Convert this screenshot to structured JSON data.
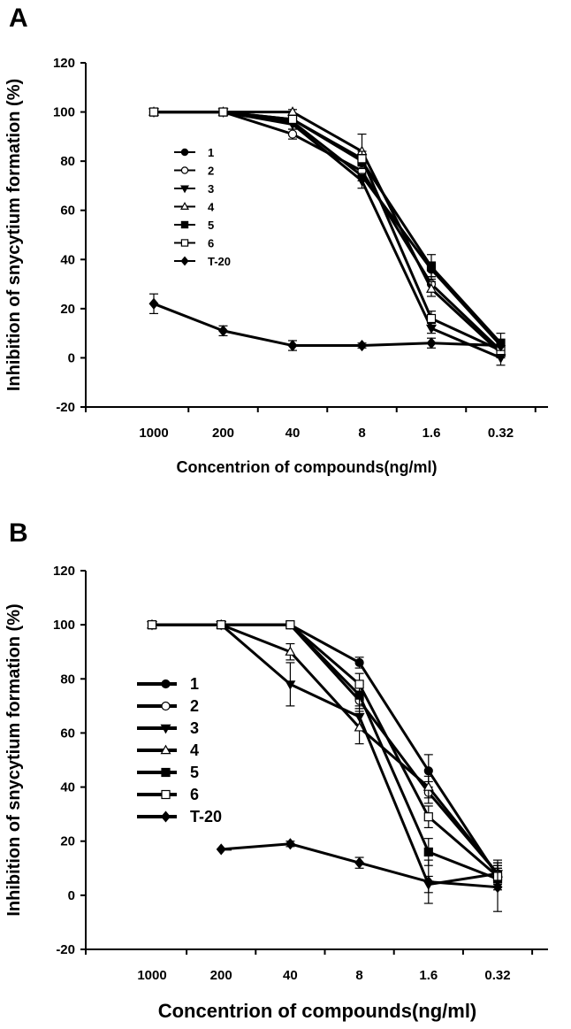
{
  "chart_data": [
    {
      "panel": "A",
      "type": "line",
      "title": "",
      "xlabel": "Concentrion of compounds(ng/ml)",
      "ylabel": "Inhibition of snycytium formation (%)",
      "ylim": [
        -20,
        120
      ],
      "yticks": [
        -20,
        0,
        20,
        40,
        60,
        80,
        100,
        120
      ],
      "categories": [
        "1000",
        "200",
        "40",
        "8",
        "1.6",
        "0.32"
      ],
      "grid": false,
      "legend_position": "center-left",
      "series": [
        {
          "name": "1",
          "marker": "circle-filled",
          "values": [
            100,
            100,
            96,
            74,
            36,
            5
          ],
          "errors": [
            0,
            0,
            1,
            2,
            3,
            2
          ]
        },
        {
          "name": "2",
          "marker": "circle-open",
          "values": [
            100,
            100,
            91,
            76,
            30,
            3
          ],
          "errors": [
            0,
            0,
            2,
            3,
            3,
            2
          ]
        },
        {
          "name": "3",
          "marker": "triangle-down-filled",
          "values": [
            100,
            100,
            95,
            72,
            12,
            0
          ],
          "errors": [
            0,
            0,
            2,
            3,
            2,
            3
          ]
        },
        {
          "name": "4",
          "marker": "triangle-up-open",
          "values": [
            100,
            100,
            100,
            84,
            28,
            2
          ],
          "errors": [
            0,
            0,
            1,
            7,
            3,
            2
          ]
        },
        {
          "name": "5",
          "marker": "square-filled",
          "values": [
            100,
            100,
            97,
            80,
            37,
            6
          ],
          "errors": [
            0,
            0,
            1,
            2,
            5,
            4
          ]
        },
        {
          "name": "6",
          "marker": "square-open",
          "values": [
            100,
            100,
            97,
            81,
            16,
            3
          ],
          "errors": [
            0,
            0,
            1,
            3,
            3,
            2
          ]
        },
        {
          "name": "T-20",
          "marker": "diamond-filled",
          "values": [
            22,
            11,
            5,
            5,
            6,
            5
          ],
          "errors": [
            4,
            2,
            2,
            1,
            2,
            2
          ]
        }
      ]
    },
    {
      "panel": "B",
      "type": "line",
      "title": "",
      "xlabel": "Concentrion of compounds(ng/ml)",
      "ylabel": "Inhibition of snycytium formation (%)",
      "ylim": [
        -20,
        120
      ],
      "yticks": [
        -20,
        0,
        20,
        40,
        60,
        80,
        100,
        120
      ],
      "categories": [
        "1000",
        "200",
        "40",
        "8",
        "1.6",
        "0.32"
      ],
      "grid": false,
      "legend_position": "center-left",
      "series": [
        {
          "name": "1",
          "marker": "circle-filled",
          "values": [
            100,
            100,
            100,
            86,
            46,
            7
          ],
          "errors": [
            0,
            0,
            0,
            2,
            6,
            3
          ]
        },
        {
          "name": "2",
          "marker": "circle-open",
          "values": [
            100,
            100,
            100,
            72,
            38,
            8
          ],
          "errors": [
            0,
            0,
            0,
            3,
            4,
            3
          ]
        },
        {
          "name": "3",
          "marker": "triangle-down-filled",
          "values": [
            100,
            100,
            78,
            66,
            4,
            8
          ],
          "errors": [
            0,
            0,
            8,
            3,
            3,
            4
          ]
        },
        {
          "name": "4",
          "marker": "triangle-up-open",
          "values": [
            100,
            100,
            90,
            62,
            40,
            8
          ],
          "errors": [
            0,
            0,
            3,
            6,
            4,
            5
          ]
        },
        {
          "name": "5",
          "marker": "square-filled",
          "values": [
            100,
            100,
            100,
            74,
            16,
            6
          ],
          "errors": [
            0,
            0,
            0,
            4,
            5,
            4
          ]
        },
        {
          "name": "6",
          "marker": "square-open",
          "values": [
            100,
            100,
            100,
            78,
            29,
            7
          ],
          "errors": [
            0,
            0,
            0,
            4,
            4,
            4
          ]
        },
        {
          "name": "T-20",
          "marker": "diamond-filled",
          "values": [
            null,
            17,
            19,
            12,
            5,
            3
          ],
          "errors": [
            0,
            0,
            1,
            2,
            8,
            9
          ]
        }
      ]
    }
  ]
}
